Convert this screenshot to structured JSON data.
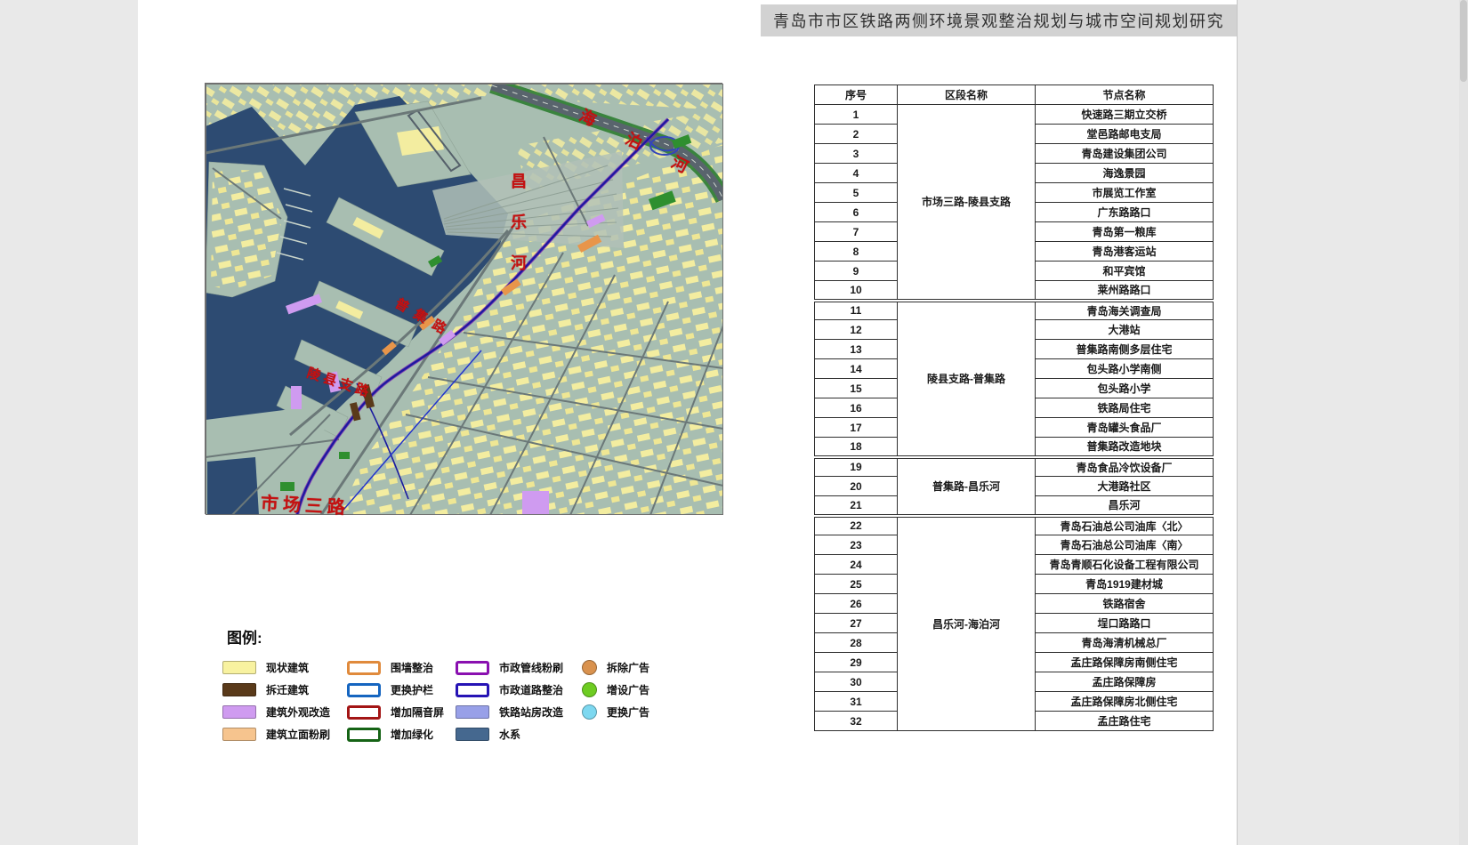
{
  "page": {
    "title": "青岛市市区铁路两侧环境景观整治规划与城市空间规划研究"
  },
  "map": {
    "labels": [
      {
        "id": "haibo-river",
        "text": "海泊河"
      },
      {
        "id": "changle-river",
        "text": "昌乐河"
      },
      {
        "id": "puji-road",
        "text": "普集路"
      },
      {
        "id": "lingxian-branch-road",
        "text": "陵县支路"
      },
      {
        "id": "shichang-third-road",
        "text": "市场三路"
      }
    ],
    "palette": {
      "water": "#2d4b72",
      "land": "#a8beb1",
      "buildings": "#f3eda0",
      "railway": "#1a1aa0"
    }
  },
  "legend": {
    "heading": "图例:",
    "columns": [
      {
        "items": [
          {
            "label": "现状建筑",
            "type": "filled",
            "color": "#f8f2a0"
          },
          {
            "label": "拆迁建筑",
            "type": "filled",
            "color": "#5a3a1a"
          },
          {
            "label": "建筑外观改造",
            "type": "filled",
            "color": "#cf9bf0"
          },
          {
            "label": "建筑立面粉刷",
            "type": "filled",
            "color": "#f6c48e"
          }
        ]
      },
      {
        "items": [
          {
            "label": "围墙整治",
            "type": "outline",
            "color": "#e08a3c"
          },
          {
            "label": "更换护栏",
            "type": "outline",
            "color": "#1565c0"
          },
          {
            "label": "增加隔音屏",
            "type": "outline",
            "color": "#a31515"
          },
          {
            "label": "增加绿化",
            "type": "outline",
            "color": "#156315"
          }
        ]
      },
      {
        "items": [
          {
            "label": "市政管线粉刷",
            "type": "outline",
            "color": "#8a10b0"
          },
          {
            "label": "市政道路整治",
            "type": "outline",
            "color": "#2613b5"
          },
          {
            "label": "铁路站房改造",
            "type": "filled",
            "color": "#98a0e8"
          },
          {
            "label": "水系",
            "type": "filled",
            "color": "#45688f"
          }
        ]
      },
      {
        "items": [
          {
            "label": "拆除广告",
            "type": "circle",
            "color": "#d9924e"
          },
          {
            "label": "增设广告",
            "type": "circle",
            "color": "#6ecc22"
          },
          {
            "label": "更换广告",
            "type": "circle",
            "color": "#7dd8f0"
          }
        ]
      }
    ]
  },
  "table": {
    "headers": [
      "序号",
      "区段名称",
      "节点名称"
    ],
    "groups": [
      {
        "section": "市场三路-陵县支路",
        "rows": [
          {
            "no": "1",
            "name": "快速路三期立交桥"
          },
          {
            "no": "2",
            "name": "堂邑路邮电支局"
          },
          {
            "no": "3",
            "name": "青岛建设集团公司"
          },
          {
            "no": "4",
            "name": "海逸景园"
          },
          {
            "no": "5",
            "name": "市展览工作室"
          },
          {
            "no": "6",
            "name": "广东路路口"
          },
          {
            "no": "7",
            "name": "青岛第一粮库"
          },
          {
            "no": "8",
            "name": "青岛港客运站"
          },
          {
            "no": "9",
            "name": "和平宾馆"
          },
          {
            "no": "10",
            "name": "莱州路路口"
          }
        ]
      },
      {
        "section": "陵县支路-普集路",
        "rows": [
          {
            "no": "11",
            "name": "青岛海关调查局"
          },
          {
            "no": "12",
            "name": "大港站"
          },
          {
            "no": "13",
            "name": "普集路南侧多层住宅"
          },
          {
            "no": "14",
            "name": "包头路小学南侧"
          },
          {
            "no": "15",
            "name": "包头路小学"
          },
          {
            "no": "16",
            "name": "铁路局住宅"
          },
          {
            "no": "17",
            "name": "青岛罐头食品厂"
          },
          {
            "no": "18",
            "name": "普集路改造地块"
          }
        ]
      },
      {
        "section": "普集路-昌乐河",
        "rows": [
          {
            "no": "19",
            "name": "青岛食品冷饮设备厂"
          },
          {
            "no": "20",
            "name": "大港路社区"
          },
          {
            "no": "21",
            "name": "昌乐河"
          }
        ]
      },
      {
        "section": "昌乐河-海泊河",
        "rows": [
          {
            "no": "22",
            "name": "青岛石油总公司油库〈北〉"
          },
          {
            "no": "23",
            "name": "青岛石油总公司油库〈南〉"
          },
          {
            "no": "24",
            "name": "青岛青顺石化设备工程有限公司"
          },
          {
            "no": "25",
            "name": "青岛1919建材城"
          },
          {
            "no": "26",
            "name": "铁路宿舍"
          },
          {
            "no": "27",
            "name": "埕口路路口"
          },
          {
            "no": "28",
            "name": "青岛海清机械总厂"
          },
          {
            "no": "29",
            "name": "孟庄路保障房南侧住宅"
          },
          {
            "no": "30",
            "name": "孟庄路保障房"
          },
          {
            "no": "31",
            "name": "孟庄路保障房北侧住宅"
          },
          {
            "no": "32",
            "name": "孟庄路住宅"
          }
        ]
      }
    ]
  }
}
